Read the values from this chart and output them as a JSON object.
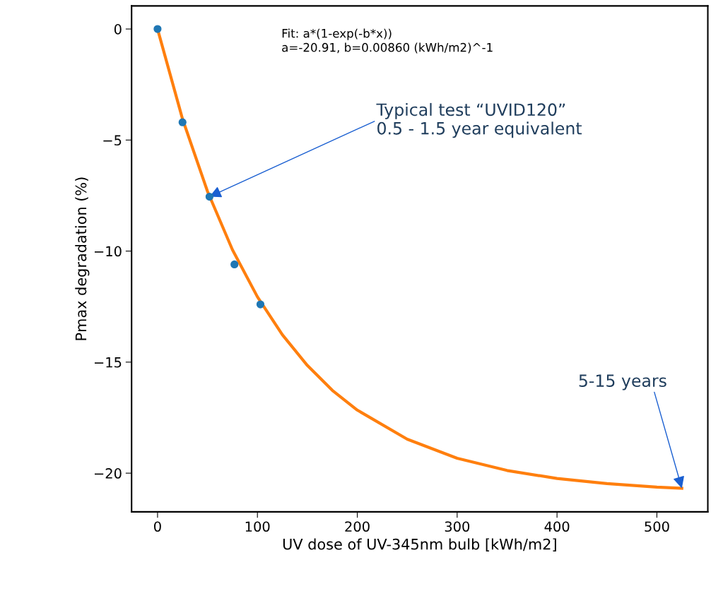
{
  "chart_data": {
    "type": "scatter",
    "xlabel": "UV dose of UV-345nm bulb [kWh/m2]",
    "ylabel": "Pmax degradation (%)",
    "xlim": [
      -26,
      551
    ],
    "ylim": [
      -21.74,
      1.04
    ],
    "xticks": [
      0,
      100,
      200,
      300,
      400,
      500
    ],
    "yticks": [
      {
        "value": 0,
        "label": "0"
      },
      {
        "value": -5,
        "label": "−5"
      },
      {
        "value": -10,
        "label": "−10"
      },
      {
        "value": -15,
        "label": "−15"
      },
      {
        "value": -20,
        "label": "−20"
      }
    ],
    "grid": false,
    "series": [
      {
        "color": "#1f77b4",
        "marker": "circle",
        "x": [
          0,
          25,
          52,
          77,
          103
        ],
        "values": [
          0,
          -4.2,
          -7.55,
          -10.6,
          -12.4
        ]
      },
      {
        "type": "line",
        "color": "#ff7f0e",
        "marker": "none",
        "line_style": "solid",
        "x": [
          0,
          25,
          50,
          75,
          100,
          125,
          150,
          175,
          200,
          250,
          300,
          350,
          400,
          450,
          500,
          525
        ],
        "values": [
          0,
          -4.05,
          -7.31,
          -9.94,
          -12.06,
          -13.77,
          -15.15,
          -16.27,
          -17.16,
          -18.47,
          -19.33,
          -19.88,
          -20.24,
          -20.47,
          -20.63,
          -20.68
        ]
      }
    ],
    "annotations": [
      "Fit: a*(1-exp(-b*x))\na=-20.91, b=0.00860 (kWh/m2)^-1",
      {
        "text": "Typical test “UVID120”\n0.5 - 1.5 year equivalent",
        "x": 52,
        "y": -7.55
      },
      {
        "text": "5-15 years",
        "x": 525,
        "y": -20.68
      }
    ]
  }
}
